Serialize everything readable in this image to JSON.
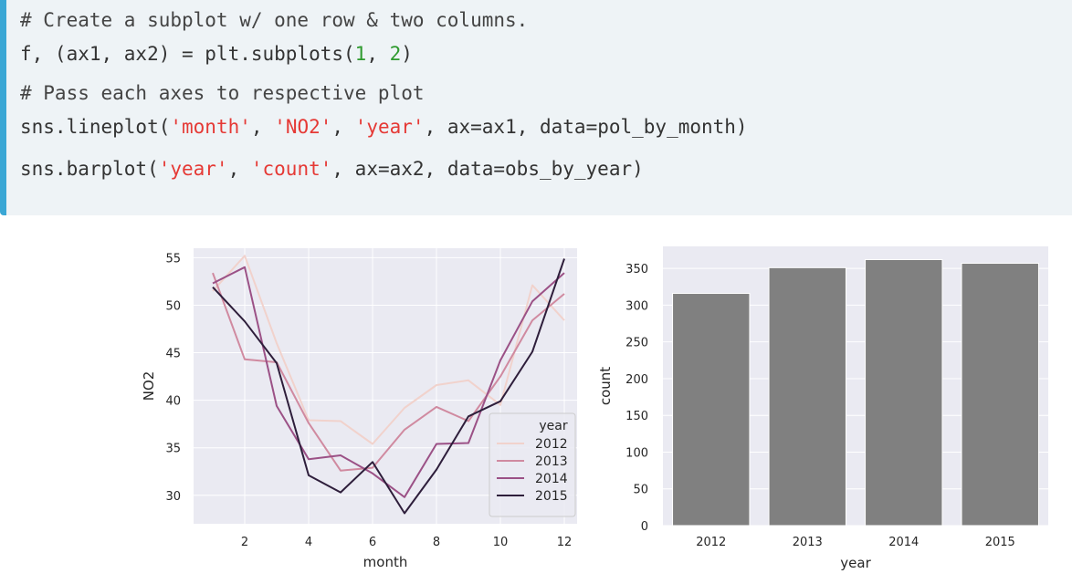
{
  "code": {
    "comment1": "# Create a subplot w/ one row & two columns.",
    "line2": {
      "a": "f, (ax1, ax2) = plt.subplots(",
      "n1": "1",
      "sep": ", ",
      "n2": "2",
      "close": ")"
    },
    "comment2": "# Pass each axes to respective plot",
    "line4": {
      "a": "sns.lineplot(",
      "s1": "'month'",
      "sep1": ", ",
      "s2": "'NO2'",
      "sep2": ", ",
      "s3": "'year'",
      "rest": ", ax=ax1, data=pol_by_month)"
    },
    "line5": {
      "a": "sns.barplot(",
      "s1": "'year'",
      "sep1": ", ",
      "s2": "'count'",
      "rest": ", ax=ax2, data=obs_by_year)"
    }
  },
  "colors": {
    "code_bg": "#eef3f6",
    "code_accent": "#3aa7d5",
    "string": "#e53935",
    "number": "#2e9a2e",
    "plot_bg": "#eaeaf2",
    "bar": "#808080"
  },
  "chart_data": [
    {
      "type": "line",
      "xlabel": "month",
      "ylabel": "NO2",
      "xlim": [
        0.4,
        12.4
      ],
      "ylim": [
        27,
        56
      ],
      "xticks": [
        2,
        4,
        6,
        8,
        10,
        12
      ],
      "yticks": [
        30,
        35,
        40,
        45,
        50,
        55
      ],
      "grid": true,
      "legend": {
        "title": "year",
        "placement": "lower-right"
      },
      "x": [
        1,
        2,
        3,
        4,
        5,
        6,
        7,
        8,
        9,
        10,
        11,
        12
      ],
      "series": [
        {
          "name": "2012",
          "color": "#f1d2cc",
          "values": [
            51.5,
            55.2,
            46.0,
            37.9,
            37.8,
            35.4,
            39.2,
            41.6,
            42.1,
            39.5,
            52.1,
            48.4
          ]
        },
        {
          "name": "2013",
          "color": "#d08aa0",
          "values": [
            53.4,
            44.3,
            44.0,
            37.6,
            32.6,
            32.9,
            36.9,
            39.3,
            37.8,
            42.5,
            48.4,
            51.2
          ]
        },
        {
          "name": "2014",
          "color": "#9b5186",
          "values": [
            52.3,
            54.0,
            39.4,
            33.8,
            34.2,
            32.3,
            29.8,
            35.4,
            35.5,
            44.2,
            50.4,
            53.4
          ]
        },
        {
          "name": "2015",
          "color": "#2e1e3b",
          "values": [
            51.9,
            48.3,
            43.9,
            32.1,
            30.3,
            33.5,
            28.1,
            32.7,
            38.3,
            39.9,
            45.1,
            54.9
          ]
        }
      ]
    },
    {
      "type": "bar",
      "xlabel": "year",
      "ylabel": "count",
      "categories": [
        "2012",
        "2013",
        "2014",
        "2015"
      ],
      "values": [
        316,
        351,
        362,
        357
      ],
      "ylim": [
        0,
        380
      ],
      "yticks": [
        0,
        50,
        100,
        150,
        200,
        250,
        300,
        350
      ],
      "grid": true
    }
  ]
}
